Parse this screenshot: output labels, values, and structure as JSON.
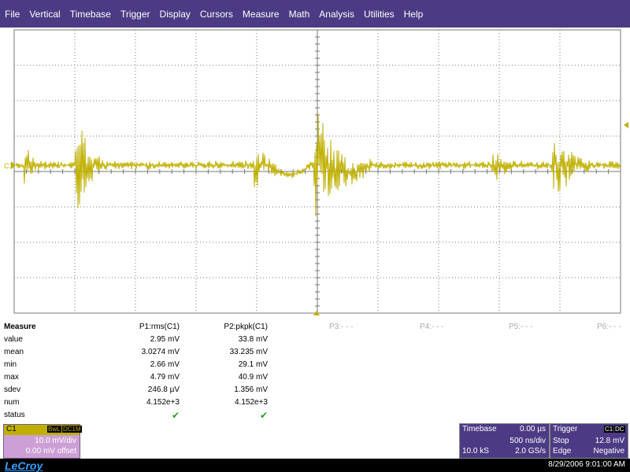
{
  "menu": [
    "File",
    "Vertical",
    "Timebase",
    "Trigger",
    "Display",
    "Cursors",
    "Measure",
    "Math",
    "Analysis",
    "Utilities",
    "Help"
  ],
  "scope": {
    "channel_label": "C1",
    "trace_color": "#bfb000",
    "grid_color": "#777777"
  },
  "measure": {
    "title": "Measure",
    "params": [
      {
        "label": "P1:rms(C1)",
        "value": "2.95 mV",
        "mean": "3.0274 mV",
        "min": "2.66 mV",
        "max": "4.79 mV",
        "sdev": "246.8 µV",
        "num": "4.152e+3",
        "status": "✔"
      },
      {
        "label": "P2:pkpk(C1)",
        "value": "33.8 mV",
        "mean": "33.235 mV",
        "min": "29.1 mV",
        "max": "40.9 mV",
        "sdev": "1.356 mV",
        "num": "4.152e+3",
        "status": "✔"
      }
    ],
    "empty_params": [
      "P3:- - -",
      "P4:- - -",
      "P5:- - -",
      "P6:- - -"
    ],
    "row_labels": [
      "value",
      "mean",
      "min",
      "max",
      "sdev",
      "num",
      "status"
    ]
  },
  "channel_box": {
    "name": "C1",
    "badges": [
      "BwL",
      "DC1M"
    ],
    "vdiv": "10.0 mV/div",
    "offset": "0.00 mV offset"
  },
  "timebase": {
    "title": "Timebase",
    "delay": "0.00 µs",
    "tdiv": "500 ns/div",
    "samples": "10.0 kS",
    "rate": "2.0 GS/s"
  },
  "trigger": {
    "title": "Trigger",
    "source_badge": "C1",
    "coupling_badge": "DC",
    "mode": "Stop",
    "level": "12.8 mV",
    "type": "Edge",
    "slope": "Negative"
  },
  "footer": {
    "brand": "LeCroy",
    "datetime": "8/29/2006 9:01:00 AM"
  }
}
